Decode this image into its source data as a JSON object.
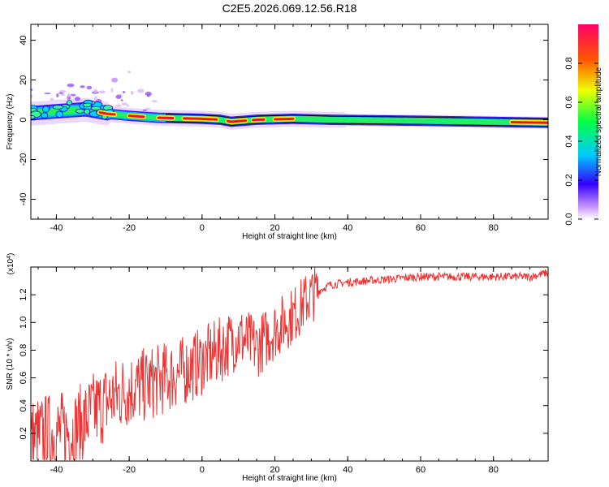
{
  "title": "C2E5.2026.069.12.56.R18",
  "chart_data": [
    {
      "type": "heatmap",
      "xlabel": "Height of straight line (km)",
      "ylabel": "Frequency (Hz)",
      "xlim": [
        -47,
        95
      ],
      "ylim": [
        -50,
        48
      ],
      "x_ticks": [
        -40,
        -20,
        0,
        20,
        40,
        60,
        80
      ],
      "y_ticks": [
        -40,
        -20,
        0,
        20,
        40
      ],
      "colorbar": {
        "label": "Normalized spectral amplitude",
        "range": [
          0.0,
          1.0
        ],
        "ticks": [
          0.0,
          0.2,
          0.4,
          0.6,
          0.8
        ]
      },
      "ridge_frequency": [
        {
          "x": -47,
          "y": 3
        },
        {
          "x": -40,
          "y": 4
        },
        {
          "x": -32,
          "y": 5
        },
        {
          "x": -26,
          "y": 3
        },
        {
          "x": -20,
          "y": 2
        },
        {
          "x": -12,
          "y": 1
        },
        {
          "x": 0,
          "y": 0.5
        },
        {
          "x": 5,
          "y": 0
        },
        {
          "x": 8,
          "y": -1
        },
        {
          "x": 15,
          "y": 0
        },
        {
          "x": 25,
          "y": 0.5
        },
        {
          "x": 35,
          "y": 0
        },
        {
          "x": 60,
          "y": -0.5
        },
        {
          "x": 95,
          "y": -1.5
        }
      ]
    },
    {
      "type": "line",
      "xlabel": "Height of straight line (km)",
      "ylabel": "SNR (10 * v/v)",
      "y_multiplier": "(x10",
      "y_multiplier_exp": "4",
      "xlim": [
        -47,
        95
      ],
      "ylim": [
        0,
        1.4
      ],
      "x_ticks": [
        -40,
        -20,
        0,
        20,
        40,
        60,
        80
      ],
      "y_ticks": [
        0.2,
        0.4,
        0.6,
        0.8,
        1.0,
        1.2
      ],
      "series": [
        {
          "color": "#ee3333",
          "trend": [
            {
              "x": -47,
              "y": 0.15
            },
            {
              "x": -40,
              "y": 0.2
            },
            {
              "x": -35,
              "y": 0.22
            },
            {
              "x": -30,
              "y": 0.35
            },
            {
              "x": -25,
              "y": 0.45
            },
            {
              "x": -20,
              "y": 0.52
            },
            {
              "x": -15,
              "y": 0.55
            },
            {
              "x": -10,
              "y": 0.6
            },
            {
              "x": -5,
              "y": 0.65
            },
            {
              "x": 0,
              "y": 0.72
            },
            {
              "x": 5,
              "y": 0.8
            },
            {
              "x": 10,
              "y": 0.9
            },
            {
              "x": 15,
              "y": 0.82
            },
            {
              "x": 20,
              "y": 0.95
            },
            {
              "x": 25,
              "y": 1.05
            },
            {
              "x": 30,
              "y": 1.2
            },
            {
              "x": 35,
              "y": 1.27
            },
            {
              "x": 40,
              "y": 1.29
            },
            {
              "x": 50,
              "y": 1.31
            },
            {
              "x": 60,
              "y": 1.33
            },
            {
              "x": 70,
              "y": 1.33
            },
            {
              "x": 80,
              "y": 1.33
            },
            {
              "x": 90,
              "y": 1.33
            },
            {
              "x": 95,
              "y": 1.36
            }
          ]
        }
      ]
    }
  ]
}
